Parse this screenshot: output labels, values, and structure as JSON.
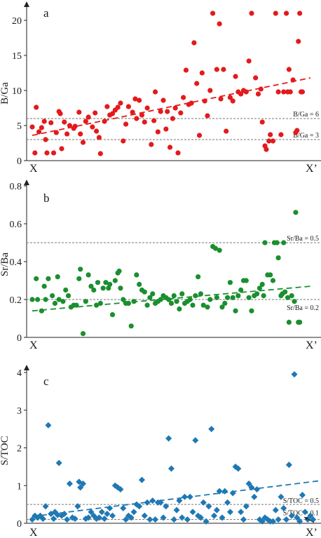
{
  "chart_data": [
    {
      "id": "a",
      "type": "scatter",
      "panel_label": "a",
      "ylabel": "B/Ga",
      "ylim": [
        0,
        22
      ],
      "yticks": [
        0,
        5,
        10,
        15,
        20
      ],
      "x_start_label": "X",
      "x_end_label": "X’",
      "color": "#e31a1c",
      "marker": "circle",
      "points": [
        [
          0.0,
          4.8
        ],
        [
          0.01,
          1.1
        ],
        [
          0.015,
          7.6
        ],
        [
          0.025,
          4.1
        ],
        [
          0.035,
          4.7
        ],
        [
          0.045,
          5.6
        ],
        [
          0.05,
          3.0
        ],
        [
          0.055,
          1.1
        ],
        [
          0.07,
          5.4
        ],
        [
          0.08,
          1.1
        ],
        [
          0.09,
          4.0
        ],
        [
          0.1,
          7.0
        ],
        [
          0.105,
          6.7
        ],
        [
          0.11,
          1.7
        ],
        [
          0.12,
          5.5
        ],
        [
          0.13,
          3.8
        ],
        [
          0.14,
          5.0
        ],
        [
          0.155,
          4.6
        ],
        [
          0.16,
          4.9
        ],
        [
          0.175,
          6.9
        ],
        [
          0.18,
          3.8
        ],
        [
          0.19,
          2.6
        ],
        [
          0.2,
          5.6
        ],
        [
          0.21,
          6.2
        ],
        [
          0.225,
          4.8
        ],
        [
          0.235,
          6.8
        ],
        [
          0.24,
          4.2
        ],
        [
          0.25,
          3.3
        ],
        [
          0.255,
          1.0
        ],
        [
          0.27,
          5.6
        ],
        [
          0.28,
          7.7
        ],
        [
          0.29,
          6.5
        ],
        [
          0.3,
          6.7
        ],
        [
          0.31,
          7.2
        ],
        [
          0.32,
          7.6
        ],
        [
          0.33,
          8.2
        ],
        [
          0.34,
          2.8
        ],
        [
          0.35,
          5.2
        ],
        [
          0.36,
          7.7
        ],
        [
          0.375,
          6.9
        ],
        [
          0.385,
          8.8
        ],
        [
          0.39,
          6.0
        ],
        [
          0.4,
          8.6
        ],
        [
          0.41,
          6.5
        ],
        [
          0.42,
          5.5
        ],
        [
          0.43,
          7.5
        ],
        [
          0.445,
          2.3
        ],
        [
          0.455,
          5.7
        ],
        [
          0.46,
          9.8
        ],
        [
          0.47,
          4.1
        ],
        [
          0.48,
          7.0
        ],
        [
          0.49,
          8.6
        ],
        [
          0.5,
          4.5
        ],
        [
          0.505,
          7.0
        ],
        [
          0.515,
          1.9
        ],
        [
          0.525,
          6.0
        ],
        [
          0.535,
          7.5
        ],
        [
          0.545,
          1.1
        ],
        [
          0.555,
          6.8
        ],
        [
          0.565,
          9.0
        ],
        [
          0.575,
          12.9
        ],
        [
          0.585,
          8.0
        ],
        [
          0.595,
          8.2
        ],
        [
          0.605,
          16.8
        ],
        [
          0.615,
          11.0
        ],
        [
          0.625,
          3.6
        ],
        [
          0.635,
          12.5
        ],
        [
          0.645,
          8.5
        ],
        [
          0.655,
          6.4
        ],
        [
          0.665,
          10.0
        ],
        [
          0.675,
          21.0
        ],
        [
          0.69,
          13.0
        ],
        [
          0.7,
          19.5
        ],
        [
          0.705,
          8.8
        ],
        [
          0.715,
          13.0
        ],
        [
          0.725,
          4.2
        ],
        [
          0.74,
          9.0
        ],
        [
          0.75,
          8.5
        ],
        [
          0.76,
          12.0
        ],
        [
          0.77,
          9.8
        ],
        [
          0.78,
          9.5
        ],
        [
          0.79,
          10.0
        ],
        [
          0.8,
          9.8
        ],
        [
          0.81,
          14.2
        ],
        [
          0.82,
          21.0
        ],
        [
          0.835,
          11.8
        ],
        [
          0.845,
          9.5
        ],
        [
          0.855,
          10.2
        ],
        [
          0.86,
          5.5
        ],
        [
          0.87,
          2.1
        ],
        [
          0.875,
          1.6
        ],
        [
          0.885,
          2.8
        ],
        [
          0.89,
          3.7
        ],
        [
          0.9,
          2.8
        ],
        [
          0.91,
          21.0
        ],
        [
          0.92,
          9.8
        ],
        [
          0.93,
          3.7
        ],
        [
          0.94,
          9.8
        ],
        [
          0.95,
          21.0
        ],
        [
          0.955,
          9.8
        ],
        [
          0.96,
          13.0
        ],
        [
          0.965,
          9.8
        ],
        [
          0.975,
          11.5
        ],
        [
          0.985,
          4.0
        ],
        [
          0.99,
          4.3
        ],
        [
          0.995,
          17.0
        ],
        [
          1.0,
          21.0
        ],
        [
          1.005,
          9.8
        ],
        [
          1.01,
          9.8
        ]
      ],
      "trend": [
        [
          0.0,
          3.6
        ],
        [
          1.04,
          11.8
        ]
      ],
      "refs": [
        {
          "value": 6,
          "label": "B/Ga = 6"
        },
        {
          "value": 3,
          "label": "B/Ga = 3"
        }
      ]
    },
    {
      "id": "b",
      "type": "scatter",
      "panel_label": "b",
      "ylabel": "Sr/Ba",
      "ylim": [
        0,
        0.8
      ],
      "yticks": [
        0,
        0.2,
        0.4,
        0.6,
        0.8
      ],
      "x_start_label": "X",
      "x_end_label": "X’",
      "color": "#1a8f2e",
      "marker": "circle",
      "points": [
        [
          0.0,
          0.2
        ],
        [
          0.015,
          0.31
        ],
        [
          0.02,
          0.2
        ],
        [
          0.035,
          0.14
        ],
        [
          0.045,
          0.27
        ],
        [
          0.05,
          0.2
        ],
        [
          0.06,
          0.31
        ],
        [
          0.075,
          0.22
        ],
        [
          0.085,
          0.18
        ],
        [
          0.095,
          0.32
        ],
        [
          0.1,
          0.2
        ],
        [
          0.115,
          0.19
        ],
        [
          0.125,
          0.25
        ],
        [
          0.135,
          0.22
        ],
        [
          0.145,
          0.16
        ],
        [
          0.155,
          0.17
        ],
        [
          0.165,
          0.17
        ],
        [
          0.175,
          0.31
        ],
        [
          0.18,
          0.36
        ],
        [
          0.19,
          0.02
        ],
        [
          0.2,
          0.19
        ],
        [
          0.21,
          0.33
        ],
        [
          0.22,
          0.27
        ],
        [
          0.23,
          0.25
        ],
        [
          0.24,
          0.17
        ],
        [
          0.245,
          0.29
        ],
        [
          0.255,
          0.18
        ],
        [
          0.265,
          0.26
        ],
        [
          0.275,
          0.29
        ],
        [
          0.285,
          0.26
        ],
        [
          0.29,
          0.28
        ],
        [
          0.3,
          0.12
        ],
        [
          0.31,
          0.3
        ],
        [
          0.32,
          0.34
        ],
        [
          0.325,
          0.35
        ],
        [
          0.33,
          0.26
        ],
        [
          0.34,
          0.2
        ],
        [
          0.35,
          0.18
        ],
        [
          0.36,
          0.18
        ],
        [
          0.37,
          0.06
        ],
        [
          0.38,
          0.19
        ],
        [
          0.39,
          0.33
        ],
        [
          0.4,
          0.28
        ],
        [
          0.41,
          0.25
        ],
        [
          0.42,
          0.24
        ],
        [
          0.43,
          0.17
        ],
        [
          0.44,
          0.21
        ],
        [
          0.45,
          0.23
        ],
        [
          0.46,
          0.18
        ],
        [
          0.47,
          0.19
        ],
        [
          0.48,
          0.2
        ],
        [
          0.49,
          0.22
        ],
        [
          0.5,
          0.21
        ],
        [
          0.51,
          0.2
        ],
        [
          0.52,
          0.18
        ],
        [
          0.53,
          0.22
        ],
        [
          0.54,
          0.19
        ],
        [
          0.55,
          0.15
        ],
        [
          0.56,
          0.23
        ],
        [
          0.57,
          0.18
        ],
        [
          0.58,
          0.19
        ],
        [
          0.59,
          0.2
        ],
        [
          0.6,
          0.17
        ],
        [
          0.61,
          0.22
        ],
        [
          0.62,
          0.32
        ],
        [
          0.63,
          0.23
        ],
        [
          0.64,
          0.17
        ],
        [
          0.655,
          0.16
        ],
        [
          0.665,
          0.2
        ],
        [
          0.675,
          0.48
        ],
        [
          0.685,
          0.47
        ],
        [
          0.69,
          0.21
        ],
        [
          0.7,
          0.46
        ],
        [
          0.71,
          0.16
        ],
        [
          0.72,
          0.18
        ],
        [
          0.73,
          0.21
        ],
        [
          0.74,
          0.29
        ],
        [
          0.75,
          0.21
        ],
        [
          0.76,
          0.14
        ],
        [
          0.77,
          0.22
        ],
        [
          0.78,
          0.25
        ],
        [
          0.79,
          0.3
        ],
        [
          0.8,
          0.3
        ],
        [
          0.81,
          0.21
        ],
        [
          0.82,
          0.14
        ],
        [
          0.83,
          0.22
        ],
        [
          0.84,
          0.23
        ],
        [
          0.85,
          0.26
        ],
        [
          0.86,
          0.28
        ],
        [
          0.865,
          0.22
        ],
        [
          0.87,
          0.5
        ],
        [
          0.88,
          0.33
        ],
        [
          0.89,
          0.33
        ],
        [
          0.9,
          0.3
        ],
        [
          0.905,
          0.5
        ],
        [
          0.915,
          0.5
        ],
        [
          0.92,
          0.42
        ],
        [
          0.93,
          0.22
        ],
        [
          0.935,
          0.23
        ],
        [
          0.94,
          0.5
        ],
        [
          0.945,
          0.24
        ],
        [
          0.955,
          0.21
        ],
        [
          0.96,
          0.08
        ],
        [
          0.97,
          0.22
        ],
        [
          0.98,
          0.19
        ],
        [
          0.985,
          0.66
        ],
        [
          0.995,
          0.08
        ],
        [
          1.0,
          0.08
        ]
      ],
      "trend": [
        [
          0.0,
          0.14
        ],
        [
          1.04,
          0.27
        ]
      ],
      "refs": [
        {
          "value": 0.5,
          "label": "Sr/Ba = 0.5"
        },
        {
          "value": 0.2,
          "label": "Sr/Ba = 0.2"
        }
      ]
    },
    {
      "id": "c",
      "type": "scatter",
      "panel_label": "c",
      "ylabel": "S/TOC",
      "ylim": [
        0,
        4.2
      ],
      "yticks": [
        0,
        1,
        2,
        3,
        4
      ],
      "x_start_label": "X",
      "x_end_label": "X’",
      "color": "#1f78b4",
      "marker": "diamond",
      "points": [
        [
          0.0,
          0.1
        ],
        [
          0.01,
          0.2
        ],
        [
          0.02,
          0.15
        ],
        [
          0.03,
          0.2
        ],
        [
          0.04,
          0.12
        ],
        [
          0.05,
          0.45
        ],
        [
          0.06,
          2.6
        ],
        [
          0.07,
          0.25
        ],
        [
          0.08,
          0.12
        ],
        [
          0.085,
          0.3
        ],
        [
          0.095,
          0.22
        ],
        [
          0.1,
          1.6
        ],
        [
          0.11,
          0.2
        ],
        [
          0.12,
          0.25
        ],
        [
          0.13,
          0.1
        ],
        [
          0.14,
          1.05
        ],
        [
          0.15,
          0.15
        ],
        [
          0.16,
          0.12
        ],
        [
          0.17,
          0.45
        ],
        [
          0.175,
          1.1
        ],
        [
          0.18,
          0.95
        ],
        [
          0.19,
          1.05
        ],
        [
          0.2,
          0.12
        ],
        [
          0.21,
          0.15
        ],
        [
          0.22,
          0.3
        ],
        [
          0.23,
          0.2
        ],
        [
          0.24,
          0.12
        ],
        [
          0.25,
          0.15
        ],
        [
          0.26,
          0.3
        ],
        [
          0.27,
          0.12
        ],
        [
          0.28,
          0.25
        ],
        [
          0.29,
          0.4
        ],
        [
          0.3,
          0.2
        ],
        [
          0.31,
          1.0
        ],
        [
          0.32,
          0.95
        ],
        [
          0.33,
          0.9
        ],
        [
          0.34,
          0.4
        ],
        [
          0.35,
          0.1
        ],
        [
          0.36,
          0.2
        ],
        [
          0.37,
          0.15
        ],
        [
          0.38,
          0.3
        ],
        [
          0.39,
          0.5
        ],
        [
          0.4,
          0.45
        ],
        [
          0.41,
          1.15
        ],
        [
          0.42,
          0.2
        ],
        [
          0.43,
          0.55
        ],
        [
          0.44,
          0.1
        ],
        [
          0.45,
          0.6
        ],
        [
          0.46,
          0.1
        ],
        [
          0.47,
          0.55
        ],
        [
          0.48,
          0.55
        ],
        [
          0.49,
          0.15
        ],
        [
          0.5,
          0.45
        ],
        [
          0.51,
          2.25
        ],
        [
          0.52,
          1.45
        ],
        [
          0.53,
          0.1
        ],
        [
          0.54,
          0.35
        ],
        [
          0.55,
          0.6
        ],
        [
          0.56,
          0.15
        ],
        [
          0.57,
          0.7
        ],
        [
          0.58,
          0.1
        ],
        [
          0.59,
          0.7
        ],
        [
          0.6,
          0.3
        ],
        [
          0.61,
          2.2
        ],
        [
          0.62,
          0.2
        ],
        [
          0.63,
          0.15
        ],
        [
          0.64,
          0.55
        ],
        [
          0.65,
          0.05
        ],
        [
          0.66,
          0.45
        ],
        [
          0.67,
          2.5
        ],
        [
          0.68,
          0.2
        ],
        [
          0.69,
          0.35
        ],
        [
          0.7,
          0.85
        ],
        [
          0.71,
          0.15
        ],
        [
          0.72,
          0.85
        ],
        [
          0.73,
          0.55
        ],
        [
          0.74,
          0.3
        ],
        [
          0.75,
          0.8
        ],
        [
          0.76,
          1.5
        ],
        [
          0.77,
          1.45
        ],
        [
          0.78,
          0.3
        ],
        [
          0.79,
          0.1
        ],
        [
          0.8,
          0.45
        ],
        [
          0.81,
          1.05
        ],
        [
          0.82,
          0.95
        ],
        [
          0.83,
          0.7
        ],
        [
          0.84,
          0.9
        ],
        [
          0.85,
          0.1
        ],
        [
          0.86,
          0.05
        ],
        [
          0.87,
          0.15
        ],
        [
          0.88,
          0.1
        ],
        [
          0.89,
          0.05
        ],
        [
          0.9,
          0.05
        ],
        [
          0.91,
          0.35
        ],
        [
          0.92,
          0.1
        ],
        [
          0.93,
          0.7
        ],
        [
          0.94,
          0.4
        ],
        [
          0.95,
          0.1
        ],
        [
          0.96,
          1.55
        ],
        [
          0.97,
          0.2
        ],
        [
          0.98,
          3.95
        ],
        [
          0.99,
          0.15
        ],
        [
          1.0,
          0.05
        ],
        [
          1.01,
          0.75
        ],
        [
          1.02,
          0.3
        ],
        [
          1.03,
          0.1
        ],
        [
          1.04,
          0.2
        ],
        [
          1.05,
          0.1
        ]
      ],
      "trend": [
        [
          0.0,
          0.18
        ],
        [
          1.1,
          1.15
        ]
      ],
      "refs": [
        {
          "value": 0.5,
          "label": "S/TOC = 0.5"
        },
        {
          "value": 0.1,
          "label": "S/TOC = 0.1"
        }
      ]
    }
  ]
}
